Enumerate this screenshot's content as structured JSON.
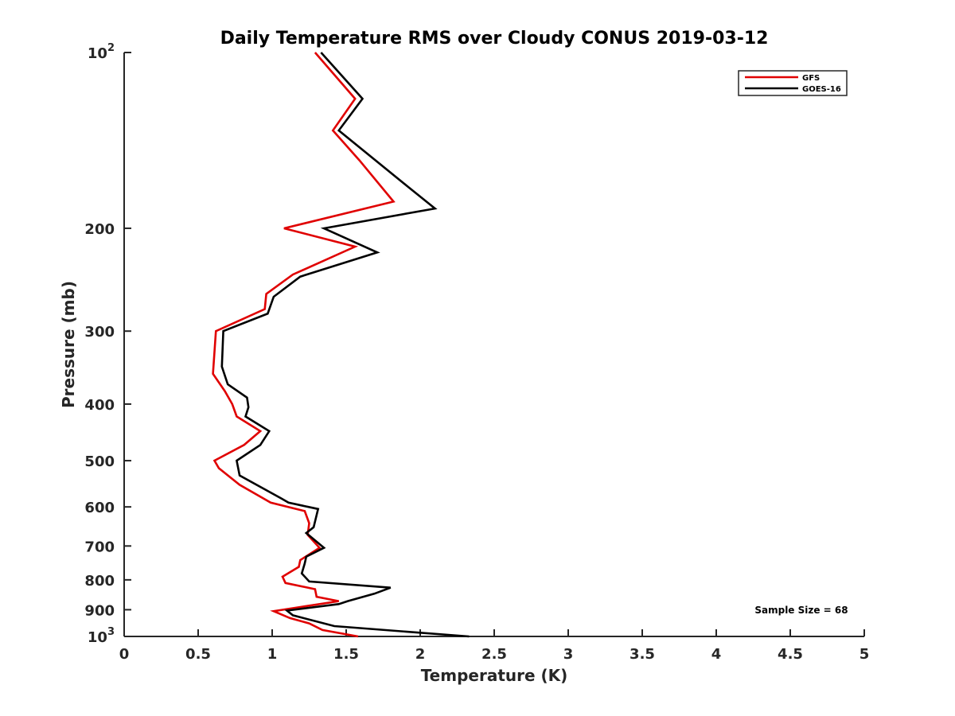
{
  "chart_data": {
    "type": "line",
    "title": "Daily Temperature RMS over Cloudy CONUS 2019-03-12",
    "xlabel": "Temperature (K)",
    "ylabel": "Pressure (mb)",
    "xlim": [
      0,
      5
    ],
    "ylim": [
      100,
      1000
    ],
    "y_scale": "log",
    "y_reversed": true,
    "grid": false,
    "legend_position": "top-right",
    "x_ticks": [
      {
        "value": 0,
        "label": "0"
      },
      {
        "value": 0.5,
        "label": "0.5"
      },
      {
        "value": 1,
        "label": "1"
      },
      {
        "value": 1.5,
        "label": "1.5"
      },
      {
        "value": 2,
        "label": "2"
      },
      {
        "value": 2.5,
        "label": "2.5"
      },
      {
        "value": 3,
        "label": "3"
      },
      {
        "value": 3.5,
        "label": "3.5"
      },
      {
        "value": 4,
        "label": "4"
      },
      {
        "value": 4.5,
        "label": "4.5"
      },
      {
        "value": 5,
        "label": "5"
      }
    ],
    "y_ticks": [
      {
        "value": 100,
        "base": "10",
        "exp": "2"
      },
      {
        "value": 200,
        "label": "200"
      },
      {
        "value": 300,
        "label": "300"
      },
      {
        "value": 400,
        "label": "400"
      },
      {
        "value": 500,
        "label": "500"
      },
      {
        "value": 600,
        "label": "600"
      },
      {
        "value": 700,
        "label": "700"
      },
      {
        "value": 800,
        "label": "800"
      },
      {
        "value": 900,
        "label": "900"
      },
      {
        "value": 1000,
        "base": "10",
        "exp": "3"
      }
    ],
    "series": [
      {
        "name": "GFS",
        "color": "#e00000",
        "points": [
          [
            1.29,
            100
          ],
          [
            1.56,
            120
          ],
          [
            1.41,
            136
          ],
          [
            1.59,
            153
          ],
          [
            1.82,
            180
          ],
          [
            1.08,
            200
          ],
          [
            1.56,
            215
          ],
          [
            1.14,
            240
          ],
          [
            0.96,
            259
          ],
          [
            0.95,
            275
          ],
          [
            0.62,
            300
          ],
          [
            0.6,
            355
          ],
          [
            0.68,
            380
          ],
          [
            0.73,
            400
          ],
          [
            0.76,
            420
          ],
          [
            0.92,
            445
          ],
          [
            0.81,
            470
          ],
          [
            0.61,
            500
          ],
          [
            0.64,
            515
          ],
          [
            0.78,
            550
          ],
          [
            0.99,
            590
          ],
          [
            1.22,
            610
          ],
          [
            1.25,
            640
          ],
          [
            1.24,
            670
          ],
          [
            1.32,
            705
          ],
          [
            1.19,
            740
          ],
          [
            1.18,
            760
          ],
          [
            1.07,
            790
          ],
          [
            1.09,
            810
          ],
          [
            1.29,
            830
          ],
          [
            1.3,
            855
          ],
          [
            1.45,
            870
          ],
          [
            1.01,
            905
          ],
          [
            1.12,
            930
          ],
          [
            1.25,
            950
          ],
          [
            1.34,
            975
          ],
          [
            1.58,
            1000
          ]
        ]
      },
      {
        "name": "GOES-16",
        "color": "#000000",
        "points": [
          [
            1.33,
            100
          ],
          [
            1.61,
            120
          ],
          [
            1.45,
            136
          ],
          [
            1.92,
            170
          ],
          [
            2.1,
            185
          ],
          [
            1.35,
            200
          ],
          [
            1.71,
            220
          ],
          [
            1.19,
            242
          ],
          [
            1.01,
            262
          ],
          [
            0.97,
            280
          ],
          [
            0.67,
            300
          ],
          [
            0.66,
            345
          ],
          [
            0.7,
            370
          ],
          [
            0.83,
            390
          ],
          [
            0.84,
            405
          ],
          [
            0.82,
            420
          ],
          [
            0.98,
            445
          ],
          [
            0.92,
            470
          ],
          [
            0.76,
            500
          ],
          [
            0.78,
            530
          ],
          [
            1.06,
            580
          ],
          [
            1.11,
            590
          ],
          [
            1.31,
            605
          ],
          [
            1.28,
            650
          ],
          [
            1.23,
            665
          ],
          [
            1.35,
            705
          ],
          [
            1.23,
            730
          ],
          [
            1.22,
            750
          ],
          [
            1.2,
            780
          ],
          [
            1.25,
            805
          ],
          [
            1.8,
            825
          ],
          [
            1.69,
            845
          ],
          [
            1.51,
            870
          ],
          [
            1.45,
            880
          ],
          [
            1.1,
            903
          ],
          [
            1.14,
            920
          ],
          [
            1.42,
            960
          ],
          [
            1.99,
            985
          ],
          [
            2.33,
            1000
          ]
        ]
      }
    ],
    "annotations": [
      {
        "text": "Sample Size = 68"
      }
    ]
  }
}
